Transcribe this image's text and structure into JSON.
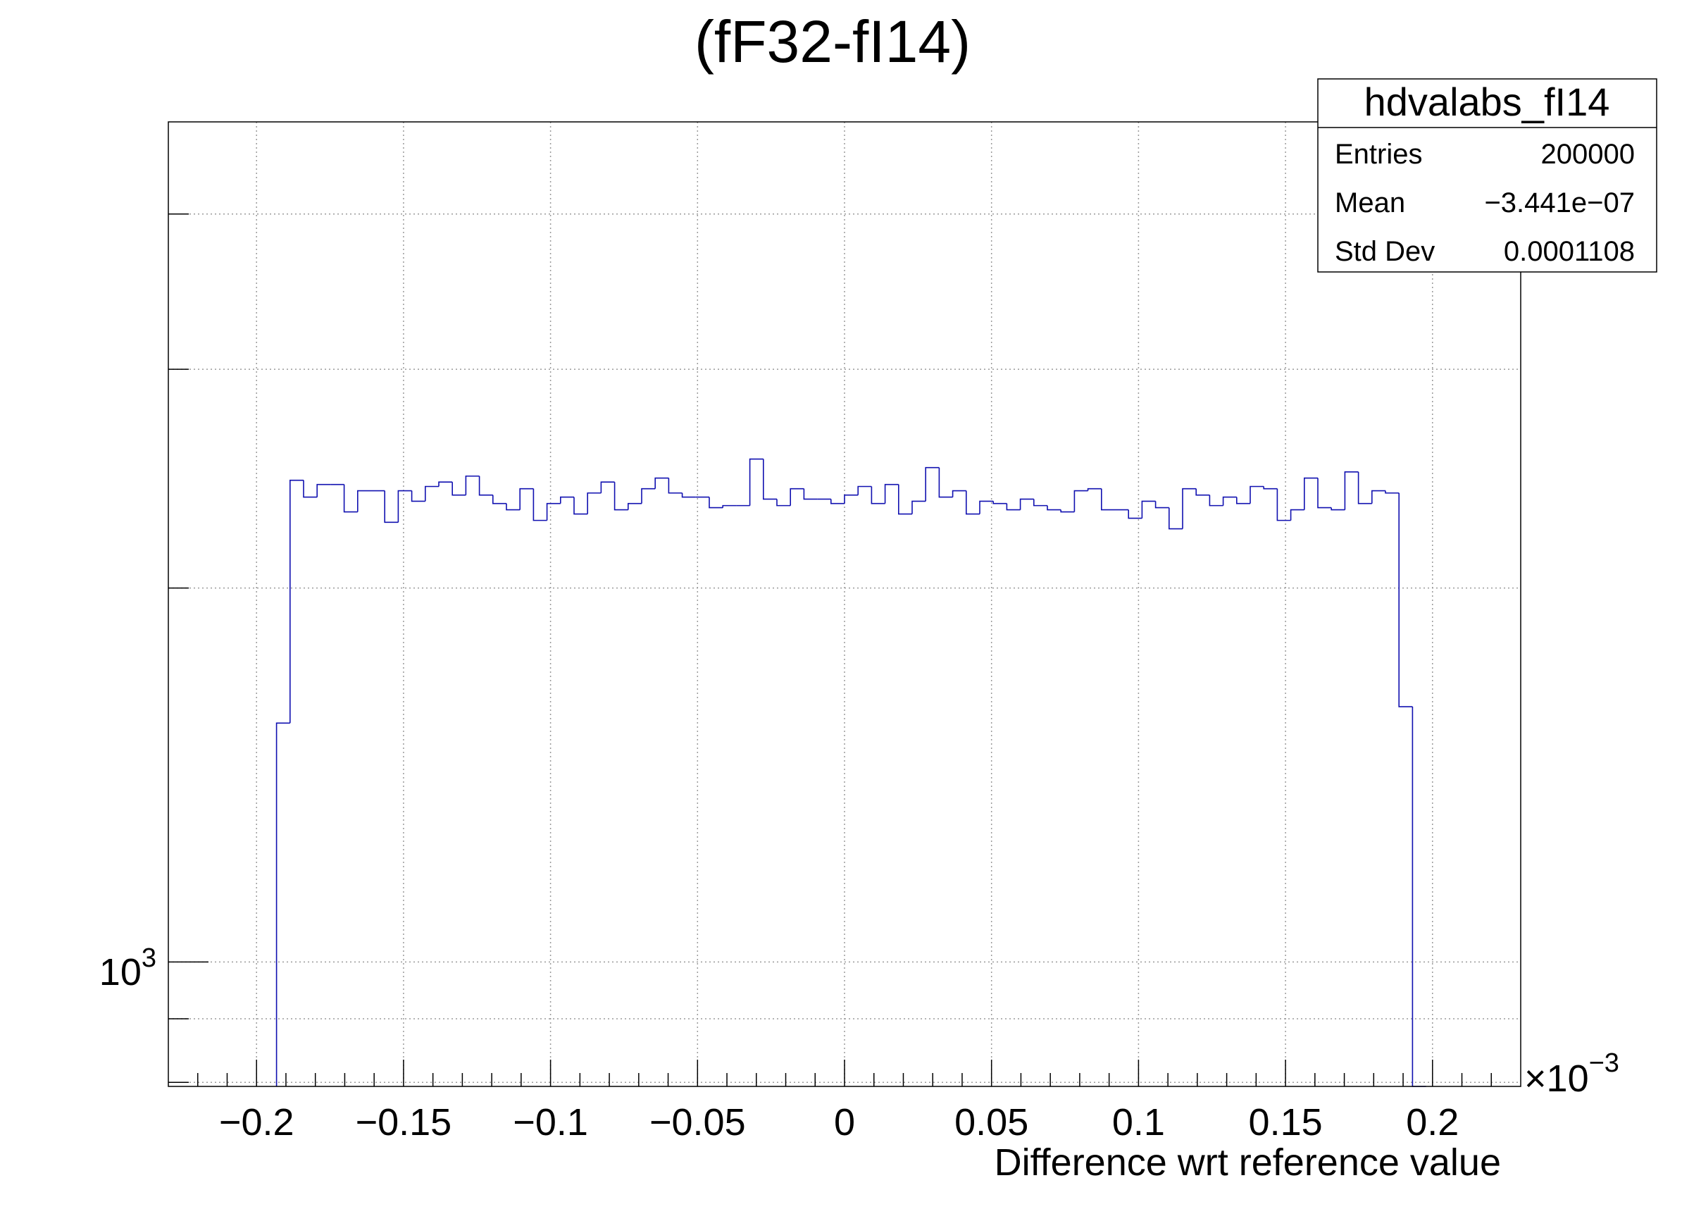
{
  "chart_data": {
    "type": "bar",
    "style": "step-histogram",
    "title": "(fF32-fI14)",
    "xlabel": "Difference wrt reference value",
    "x_multiplier": "×10",
    "x_multiplier_exponent": "−3",
    "ylabel": "",
    "x_range": [
      -0.23,
      0.23
    ],
    "nbins": 100,
    "ylim": [
      794,
      4745
    ],
    "y_scale": "log",
    "grid": true,
    "line_color": "#1010b0",
    "x_tick_labels": [
      "−0.2",
      "−0.15",
      "−0.1",
      "−0.05",
      "0",
      "0.05",
      "0.1",
      "0.15",
      "0.2"
    ],
    "x_tick_values": [
      -0.2,
      -0.15,
      -0.1,
      -0.05,
      0,
      0.05,
      0.1,
      0.15,
      0.2
    ],
    "y_tick_label_base": "10",
    "y_tick_label_exponent": "3",
    "y_tick_values": [
      800,
      900,
      1000,
      2000,
      3000,
      4000
    ],
    "values": [
      0,
      0,
      0,
      0,
      0,
      0,
      0,
      0,
      1557,
      2442,
      2367,
      2423,
      2423,
      2303,
      2395,
      2395,
      2259,
      2395,
      2349,
      2414,
      2434,
      2376,
      2461,
      2376,
      2339,
      2312,
      2404,
      2267,
      2339,
      2367,
      2294,
      2385,
      2434,
      2312,
      2339,
      2404,
      2452,
      2385,
      2367,
      2367,
      2321,
      2330,
      2330,
      2540,
      2358,
      2330,
      2404,
      2358,
      2358,
      2339,
      2376,
      2414,
      2339,
      2423,
      2294,
      2349,
      2500,
      2367,
      2395,
      2294,
      2349,
      2339,
      2312,
      2358,
      2330,
      2312,
      2303,
      2395,
      2404,
      2312,
      2312,
      2276,
      2349,
      2321,
      2232,
      2404,
      2376,
      2330,
      2367,
      2339,
      2414,
      2404,
      2267,
      2312,
      2452,
      2321,
      2312,
      2480,
      2339,
      2395,
      2385,
      1605,
      0,
      0,
      0,
      0,
      0,
      0,
      0,
      0
    ],
    "legend": {
      "name": "hdvalabs_fI14",
      "rows": [
        {
          "label": "Entries",
          "value": "200000"
        },
        {
          "label": "Mean",
          "value": "−3.441e−07"
        },
        {
          "label": "Std Dev",
          "value": "0.0001108"
        }
      ],
      "placement": "top-right"
    }
  }
}
